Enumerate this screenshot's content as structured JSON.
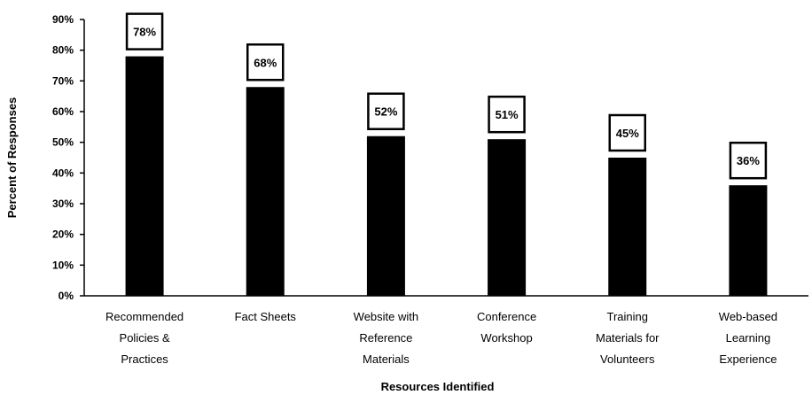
{
  "chart_data": {
    "type": "bar",
    "title": "",
    "xlabel": "Resources Identified",
    "ylabel": "Percent of Responses",
    "ylim": [
      0,
      90
    ],
    "yticks": [
      "0%",
      "10%",
      "20%",
      "30%",
      "40%",
      "50%",
      "60%",
      "70%",
      "80%",
      "90%"
    ],
    "grid": false,
    "legend": "none",
    "bar_color": "#000000",
    "categories": [
      [
        "Recommended",
        "Policies &",
        "Practices"
      ],
      [
        "Fact Sheets"
      ],
      [
        "Website with",
        "Reference",
        "Materials"
      ],
      [
        "Conference",
        "Workshop"
      ],
      [
        "Training",
        "Materials for",
        "Volunteers"
      ],
      [
        "Web-based",
        "Learning",
        "Experience"
      ]
    ],
    "values": [
      78,
      68,
      52,
      51,
      45,
      36
    ],
    "data_labels": [
      "78%",
      "68%",
      "52%",
      "51%",
      "45%",
      "36%"
    ]
  }
}
